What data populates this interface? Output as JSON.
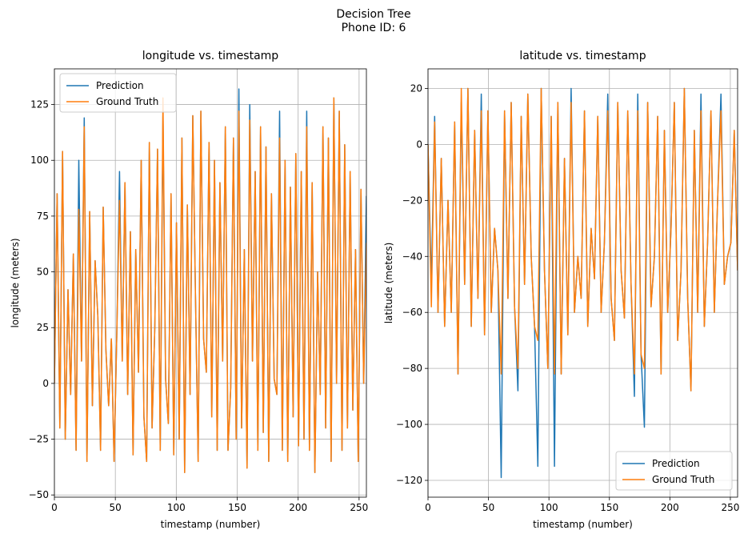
{
  "figure": {
    "title_line1": "Decision Tree",
    "title_line2": "Phone ID: 6",
    "colors": {
      "prediction": "#1f77b4",
      "ground_truth": "#ff7f0e",
      "grid": "#b0b0b0"
    }
  },
  "chart_data": [
    {
      "type": "line",
      "title": "longitude vs. timestamp",
      "xlabel": "timestamp (number)",
      "ylabel": "longitude (meters)",
      "xlim": [
        0,
        256
      ],
      "ylim": [
        -51,
        141
      ],
      "xticks": [
        0,
        50,
        100,
        150,
        200,
        250
      ],
      "yticks": [
        -50,
        -25,
        0,
        25,
        50,
        75,
        100,
        125
      ],
      "grid": true,
      "legend": "upper-left",
      "series": [
        {
          "name": "Prediction",
          "color": "#1f77b4",
          "values": [
            0,
            85,
            -20,
            104,
            -25,
            42,
            -5,
            58,
            -30,
            100,
            10,
            119,
            -35,
            77,
            -10,
            55,
            30,
            -30,
            79,
            15,
            -10,
            20,
            -35,
            22,
            95,
            10,
            90,
            -5,
            68,
            -32,
            60,
            5,
            100,
            -15,
            -35,
            108,
            -20,
            25,
            105,
            -30,
            120,
            2,
            -18,
            85,
            -32,
            72,
            -25,
            110,
            -40,
            80,
            -5,
            120,
            40,
            -35,
            122,
            20,
            5,
            108,
            -15,
            100,
            -30,
            90,
            10,
            115,
            -30,
            -2,
            110,
            -25,
            132,
            -20,
            60,
            -38,
            125,
            10,
            95,
            -30,
            115,
            -22,
            106,
            -35,
            85,
            2,
            -5,
            122,
            -30,
            100,
            -35,
            88,
            -15,
            103,
            -28,
            95,
            -25,
            122,
            -30,
            90,
            -40,
            50,
            -5,
            115,
            -20,
            110,
            -35,
            128,
            0,
            122,
            -30,
            107,
            -20,
            95,
            -12,
            60,
            -35,
            87,
            0,
            84
          ]
        },
        {
          "name": "Ground Truth",
          "color": "#ff7f0e",
          "values": [
            0,
            85,
            -20,
            104,
            -25,
            42,
            -5,
            58,
            -30,
            78,
            10,
            115,
            -35,
            77,
            -10,
            55,
            30,
            -30,
            79,
            15,
            -10,
            20,
            -35,
            22,
            82,
            10,
            90,
            -5,
            68,
            -32,
            60,
            5,
            100,
            -15,
            -35,
            108,
            -20,
            25,
            105,
            -30,
            128,
            2,
            -18,
            85,
            -32,
            72,
            -25,
            110,
            -40,
            80,
            -5,
            120,
            40,
            -35,
            122,
            20,
            5,
            108,
            -15,
            100,
            -30,
            90,
            10,
            115,
            -30,
            -2,
            110,
            -25,
            122,
            -20,
            60,
            -38,
            118,
            10,
            95,
            -30,
            115,
            -22,
            106,
            -35,
            85,
            2,
            -5,
            110,
            -30,
            100,
            -35,
            88,
            -15,
            103,
            -28,
            95,
            -25,
            115,
            -30,
            90,
            -40,
            50,
            -5,
            115,
            -20,
            110,
            -35,
            128,
            0,
            122,
            -30,
            107,
            -20,
            95,
            -12,
            60,
            -35,
            87,
            0,
            63
          ]
        }
      ]
    },
    {
      "type": "line",
      "title": "latitude vs. timestamp",
      "xlabel": "timestamp (number)",
      "ylabel": "latitude (meters)",
      "xlim": [
        0,
        256
      ],
      "ylim": [
        -126,
        27
      ],
      "xticks": [
        0,
        50,
        100,
        150,
        200,
        250
      ],
      "yticks": [
        -120,
        -100,
        -80,
        -60,
        -40,
        -20,
        0,
        20
      ],
      "grid": true,
      "legend": "lower-right",
      "series": [
        {
          "name": "Prediction",
          "color": "#1f77b4",
          "values": [
            0,
            -50,
            10,
            -60,
            -5,
            -65,
            -20,
            -60,
            8,
            -82,
            15,
            -50,
            20,
            -65,
            5,
            -55,
            18,
            -68,
            12,
            -60,
            -30,
            -45,
            -119,
            12,
            -55,
            15,
            -58,
            -88,
            10,
            -50,
            18,
            -40,
            -65,
            -115,
            20,
            -45,
            -80,
            10,
            -115,
            15,
            -82,
            -5,
            -68,
            20,
            -60,
            -40,
            -55,
            12,
            -65,
            -30,
            -48,
            10,
            -60,
            -35,
            18,
            -55,
            -70,
            15,
            -45,
            -62,
            12,
            -50,
            -90,
            18,
            -75,
            -101,
            15,
            -58,
            -40,
            10,
            -82,
            5,
            -60,
            -30,
            15,
            -70,
            -45,
            20,
            -55,
            -88,
            5,
            -60,
            18,
            -65,
            -35,
            12,
            -60,
            -20,
            18,
            -50,
            -40,
            -35,
            5,
            -45
          ]
        },
        {
          "name": "Ground Truth",
          "color": "#ff7f0e",
          "values": [
            0,
            -58,
            8,
            -60,
            -5,
            -65,
            -20,
            -60,
            8,
            -82,
            20,
            -50,
            20,
            -65,
            5,
            -55,
            12,
            -68,
            12,
            -60,
            -30,
            -45,
            -82,
            12,
            -55,
            15,
            -58,
            -80,
            10,
            -50,
            18,
            -40,
            -65,
            -70,
            20,
            -45,
            -80,
            10,
            -82,
            15,
            -82,
            -5,
            -68,
            15,
            -60,
            -40,
            -55,
            12,
            -65,
            -30,
            -48,
            10,
            -60,
            -35,
            12,
            -55,
            -70,
            15,
            -45,
            -62,
            12,
            -50,
            -82,
            12,
            -75,
            -80,
            15,
            -58,
            -40,
            10,
            -82,
            5,
            -60,
            -30,
            15,
            -70,
            -45,
            20,
            -55,
            -88,
            5,
            -60,
            12,
            -65,
            -35,
            12,
            -60,
            -20,
            12,
            -50,
            -40,
            -35,
            5,
            -45
          ]
        }
      ]
    }
  ]
}
